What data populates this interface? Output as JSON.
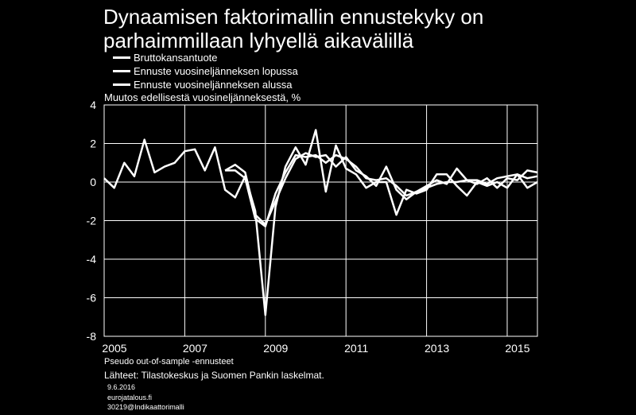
{
  "title_line1": "Dynaamisen faktorimallin ennustekyky on",
  "title_line2": "parhaimmillaan lyhyellä aikavälillä",
  "unit_label": "Muutos edellisestä vuosineljänneksestä,  %",
  "footnote": "Pseudo out-of-sample -ennusteet",
  "source": "Lähteet: Tilastokeskus  ja Suomen Pankin laskelmat.",
  "date": "9.6.2016",
  "site": "eurojatalous.fi",
  "code": "30219@Indikaattorimalli",
  "colors": {
    "background": "#000000",
    "lines": "#ffffff"
  },
  "chart_data": {
    "type": "line",
    "grid": true,
    "ylim": [
      -8,
      4
    ],
    "yticks": [
      "4",
      "2",
      "0",
      "-2",
      "-4",
      "-6",
      "-8"
    ],
    "xlim": [
      2005.0,
      2015.75
    ],
    "xticks": [
      "2005",
      "2007",
      "2009",
      "2011",
      "2013",
      "2015"
    ],
    "legend_position": "top-left",
    "series": [
      {
        "name": "Bruttokansantuote",
        "x": [
          2005.0,
          2005.25,
          2005.5,
          2005.75,
          2006.0,
          2006.25,
          2006.5,
          2006.75,
          2007.0,
          2007.25,
          2007.5,
          2007.75,
          2008.0,
          2008.25,
          2008.5,
          2008.75,
          2009.0,
          2009.25,
          2009.5,
          2009.75,
          2010.0,
          2010.25,
          2010.5,
          2010.75,
          2011.0,
          2011.25,
          2011.5,
          2011.75,
          2012.0,
          2012.25,
          2012.5,
          2012.75,
          2013.0,
          2013.25,
          2013.5,
          2013.75,
          2014.0,
          2014.25,
          2014.5,
          2014.75,
          2015.0,
          2015.25,
          2015.5,
          2015.75
        ],
        "y": [
          0.2,
          -0.3,
          1.0,
          0.3,
          2.2,
          0.5,
          0.8,
          1.0,
          1.6,
          1.7,
          0.6,
          1.8,
          -0.4,
          -0.8,
          0.3,
          -1.5,
          -6.9,
          -1.3,
          0.8,
          1.8,
          0.9,
          2.7,
          -0.5,
          1.9,
          0.7,
          0.4,
          -0.3,
          0.0,
          0.0,
          -1.7,
          -0.4,
          -0.6,
          -0.4,
          0.4,
          0.4,
          -0.2,
          -0.7,
          0.0,
          -0.2,
          0.0,
          -0.3,
          0.4,
          -0.3,
          0.0
        ]
      },
      {
        "name": "Ennuste vuosineljänneksen lopussa",
        "x": [
          2008.0,
          2008.25,
          2008.5,
          2008.75,
          2009.0,
          2009.25,
          2009.5,
          2009.75,
          2010.0,
          2010.25,
          2010.5,
          2010.75,
          2011.0,
          2011.25,
          2011.5,
          2011.75,
          2012.0,
          2012.25,
          2012.5,
          2012.75,
          2013.0,
          2013.25,
          2013.5,
          2013.75,
          2014.0,
          2014.25,
          2014.5,
          2014.75,
          2015.0,
          2015.25,
          2015.5,
          2015.75
        ],
        "y": [
          0.6,
          0.9,
          0.5,
          -1.7,
          -2.2,
          -1.0,
          0.2,
          1.2,
          1.5,
          1.3,
          1.4,
          0.8,
          1.3,
          0.6,
          0.3,
          -0.2,
          0.8,
          -0.4,
          -0.9,
          -0.5,
          -0.2,
          0.1,
          -0.1,
          0.7,
          0.1,
          -0.1,
          0.2,
          -0.3,
          0.2,
          0.1,
          0.6,
          0.5
        ]
      },
      {
        "name": "Ennuste vuosineljänneksen alussa",
        "x": [
          2008.0,
          2008.25,
          2008.5,
          2008.75,
          2009.0,
          2009.25,
          2009.5,
          2009.75,
          2010.0,
          2010.25,
          2010.5,
          2010.75,
          2011.0,
          2011.25,
          2011.5,
          2011.75,
          2012.0,
          2012.25,
          2012.5,
          2012.75,
          2013.0,
          2013.25,
          2013.5,
          2013.75,
          2014.0,
          2014.25,
          2014.5,
          2014.75,
          2015.0,
          2015.25,
          2015.5,
          2015.75
        ],
        "y": [
          0.6,
          0.6,
          0.2,
          -1.9,
          -2.3,
          -0.6,
          0.5,
          1.4,
          1.3,
          1.4,
          1.0,
          1.4,
          1.2,
          0.8,
          0.2,
          0.1,
          0.2,
          -0.2,
          -0.7,
          -0.5,
          -0.3,
          -0.1,
          0.0,
          0.0,
          0.1,
          0.1,
          -0.1,
          0.2,
          0.3,
          0.4,
          0.2,
          0.3
        ]
      }
    ]
  }
}
